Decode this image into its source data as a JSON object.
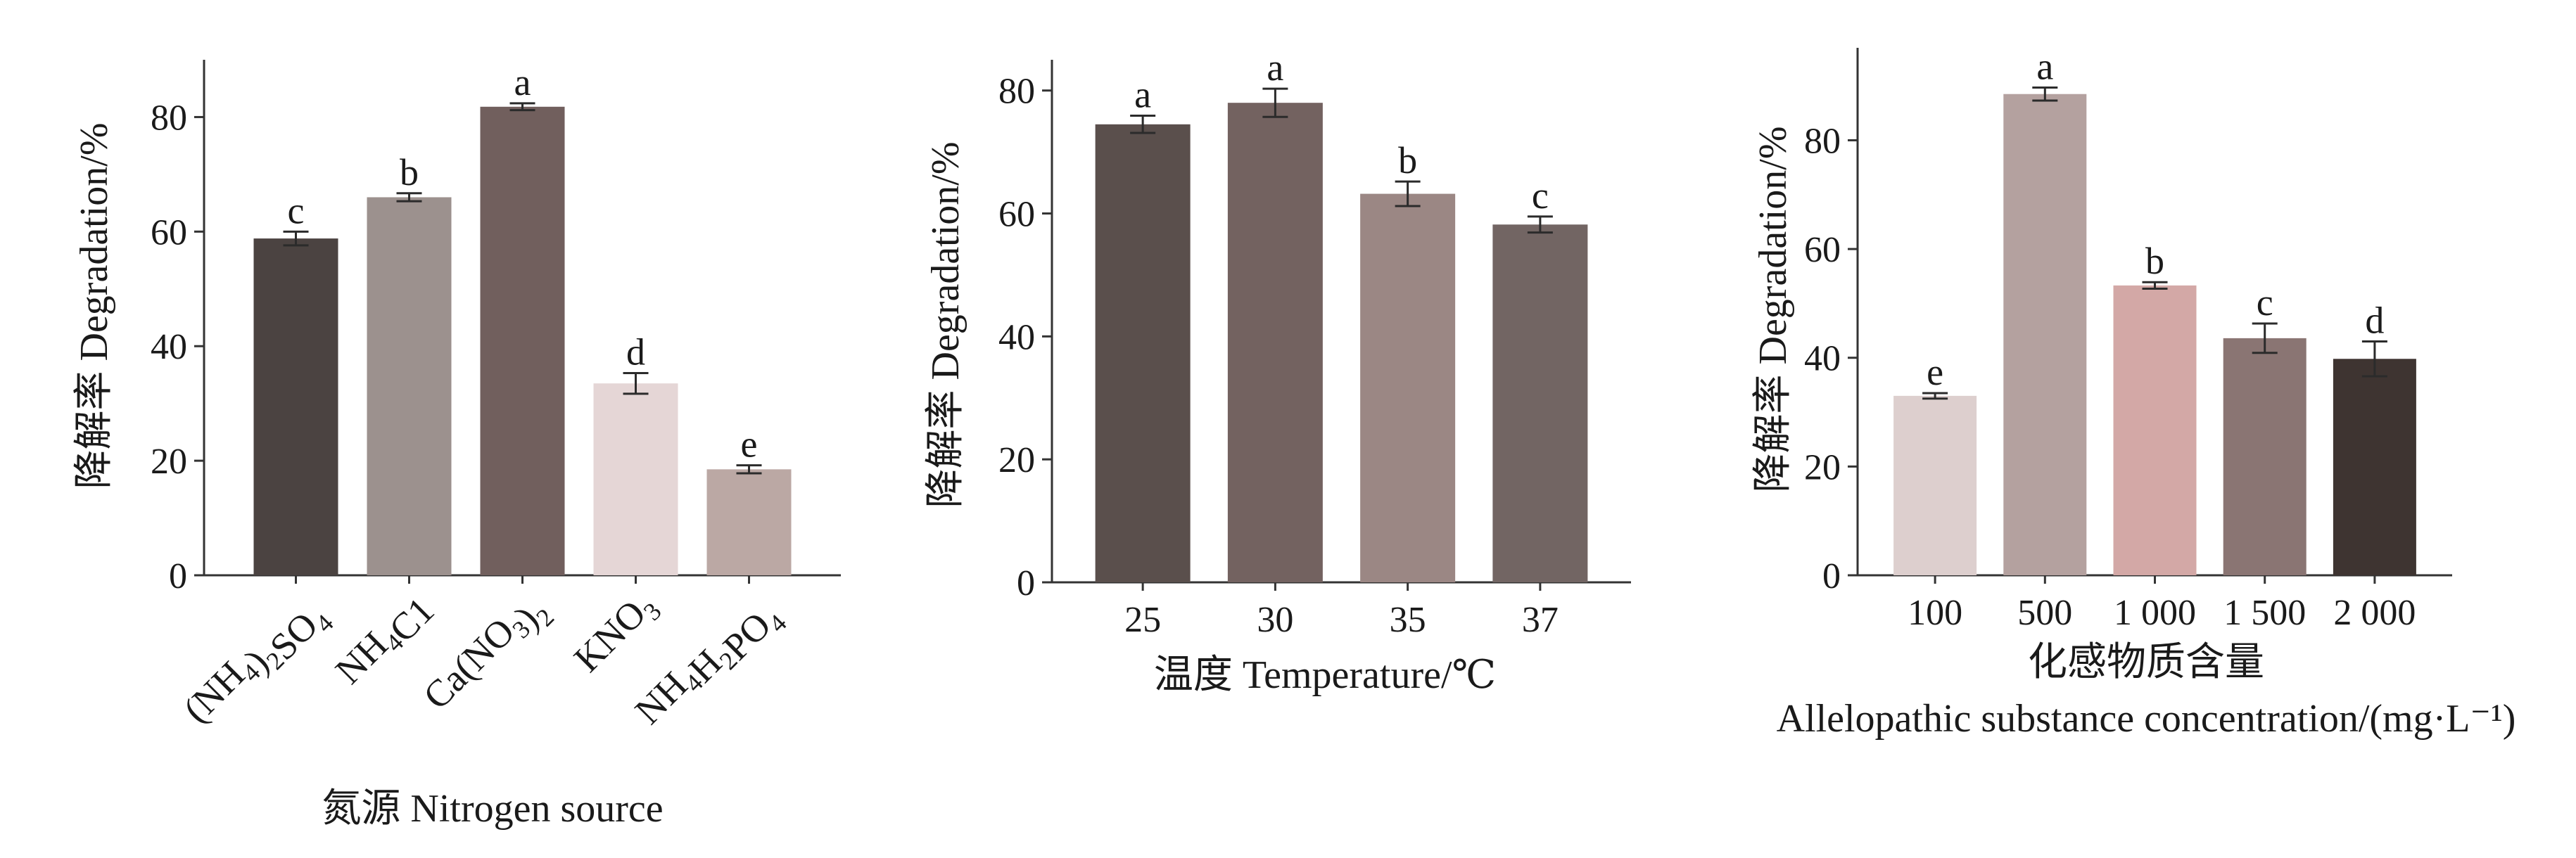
{
  "chart_data": [
    {
      "type": "bar",
      "categories": [
        "(NH4)2SO4",
        "NH4C1",
        "Ca(NO3)2",
        "KNO3",
        "NH4H2PO4"
      ],
      "categories_formatted": [
        [
          [
            "(NH",
            ""
          ],
          [
            "4",
            "sub"
          ],
          [
            ")",
            ""
          ],
          [
            "2",
            "sub"
          ],
          [
            "SO",
            ""
          ],
          [
            "4",
            "sub"
          ]
        ],
        [
          [
            "NH",
            ""
          ],
          [
            "4",
            "sub"
          ],
          [
            "C1",
            ""
          ]
        ],
        [
          [
            "Ca(NO",
            ""
          ],
          [
            "3",
            "sub"
          ],
          [
            ")",
            ""
          ],
          [
            "2",
            "sub"
          ]
        ],
        [
          [
            "KNO",
            ""
          ],
          [
            "3",
            "sub"
          ]
        ],
        [
          [
            "NH",
            ""
          ],
          [
            "4",
            "sub"
          ],
          [
            "H",
            ""
          ],
          [
            "2",
            "sub"
          ],
          [
            "PO",
            ""
          ],
          [
            "4",
            "sub"
          ]
        ]
      ],
      "values": [
        58.8,
        66.0,
        81.8,
        33.5,
        18.5
      ],
      "errors": [
        1.2,
        0.7,
        0.6,
        1.8,
        0.7
      ],
      "letters": [
        "c",
        "b",
        "a",
        "d",
        "e"
      ],
      "colors": [
        "#4b4341",
        "#9c918e",
        "#715f5d",
        "#e5d6d6",
        "#bba8a4"
      ],
      "ylabel": "降解率 Degradation/%",
      "xlabel": "氮源 Nitrogen source",
      "ylim": [
        0,
        90
      ],
      "yticks": [
        0,
        20,
        40,
        60,
        80
      ],
      "rotated_labels": true
    },
    {
      "type": "bar",
      "categories": [
        "25",
        "30",
        "35",
        "37"
      ],
      "values": [
        74.5,
        78.0,
        63.2,
        58.2
      ],
      "errors": [
        1.4,
        2.3,
        2.0,
        1.3
      ],
      "letters": [
        "a",
        "a",
        "b",
        "c"
      ],
      "colors": [
        "#5a4f4c",
        "#736260",
        "#9b8784",
        "#726563"
      ],
      "ylabel": "降解率 Degradation/%",
      "xlabel": "温度  Temperature/℃",
      "ylim": [
        0,
        85
      ],
      "yticks": [
        0,
        20,
        40,
        60,
        80
      ],
      "rotated_labels": false
    },
    {
      "type": "bar",
      "categories": [
        "100",
        "500",
        "1 000",
        "1 500",
        "2 000"
      ],
      "values": [
        33.0,
        88.5,
        53.3,
        43.6,
        39.8
      ],
      "errors": [
        0.5,
        1.2,
        0.6,
        2.7,
        3.2
      ],
      "letters": [
        "e",
        "a",
        "b",
        "c",
        "d"
      ],
      "colors": [
        "#ddcfce",
        "#b4a19f",
        "#d3a8a6",
        "#8a7573",
        "#3e3431"
      ],
      "ylabel": "降解率 Degradation/%",
      "xlabel": "化感物质含量",
      "xlabel2": "Allelopathic substance concentration/(mg·L⁻¹)",
      "ylim": [
        0,
        97
      ],
      "yticks": [
        0,
        20,
        40,
        60,
        80
      ],
      "rotated_labels": false
    }
  ]
}
